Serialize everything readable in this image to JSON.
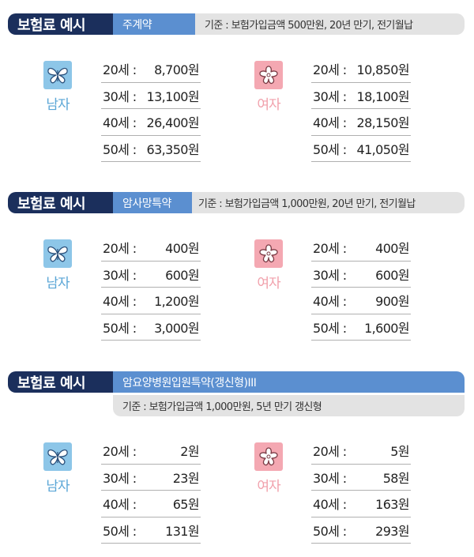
{
  "sections": [
    {
      "title": "보험료 예시",
      "product": "주계약",
      "basis": "기준 : 보험가입금액 500만원, 20년 만기, 전기월납",
      "male": {
        "label": "남자",
        "icon": "butterfly-icon",
        "rows": [
          {
            "age": "20세 :",
            "premium": "8,700원"
          },
          {
            "age": "30세 :",
            "premium": "13,100원"
          },
          {
            "age": "40세 :",
            "premium": "26,400원"
          },
          {
            "age": "50세 :",
            "premium": "63,350원"
          }
        ]
      },
      "female": {
        "label": "여자",
        "icon": "flower-icon",
        "rows": [
          {
            "age": "20세 :",
            "premium": "10,850원"
          },
          {
            "age": "30세 :",
            "premium": "18,100원"
          },
          {
            "age": "40세 :",
            "premium": "28,150원"
          },
          {
            "age": "50세 :",
            "premium": "41,050원"
          }
        ]
      }
    },
    {
      "title": "보험료 예시",
      "product": "암사망특약",
      "basis": "기준 : 보험가입금액 1,000만원, 20년 만기, 전기월납",
      "male": {
        "label": "남자",
        "icon": "butterfly-icon",
        "rows": [
          {
            "age": "20세 :",
            "premium": "400원"
          },
          {
            "age": "30세 :",
            "premium": "600원"
          },
          {
            "age": "40세 :",
            "premium": "1,200원"
          },
          {
            "age": "50세 :",
            "premium": "3,000원"
          }
        ]
      },
      "female": {
        "label": "여자",
        "icon": "flower-icon",
        "rows": [
          {
            "age": "20세 :",
            "premium": "400원"
          },
          {
            "age": "30세 :",
            "premium": "600원"
          },
          {
            "age": "40세 :",
            "premium": "900원"
          },
          {
            "age": "50세 :",
            "premium": "1,600원"
          }
        ]
      }
    },
    {
      "title": "보험료 예시",
      "product": "암요양병원입원특약(갱신형)III",
      "basis": "기준 : 보험가입금액 1,000만원, 5년 만기 갱신형",
      "male": {
        "label": "남자",
        "icon": "butterfly-icon",
        "rows": [
          {
            "age": "20세 :",
            "premium": "2원"
          },
          {
            "age": "30세 :",
            "premium": "23원"
          },
          {
            "age": "40세 :",
            "premium": "65원"
          },
          {
            "age": "50세 :",
            "premium": "131원"
          }
        ]
      },
      "female": {
        "label": "여자",
        "icon": "flower-icon",
        "rows": [
          {
            "age": "20세 :",
            "premium": "5원"
          },
          {
            "age": "30세 :",
            "premium": "58원"
          },
          {
            "age": "40세 :",
            "premium": "163원"
          },
          {
            "age": "50세 :",
            "premium": "293원"
          }
        ]
      }
    }
  ],
  "colors": {
    "title_bg": "#1b2f5c",
    "product_bg": "#5b8fd0",
    "basis_bg": "#e3e3e3",
    "male_accent": "#8dc6e8",
    "female_accent": "#f4a8b2"
  }
}
